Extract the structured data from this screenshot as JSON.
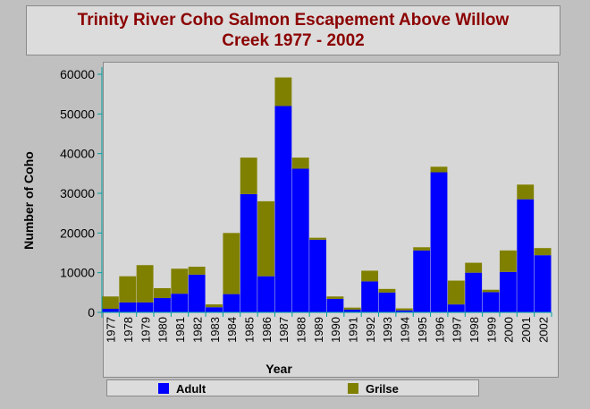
{
  "title_line1": "Trinity River Coho Salmon Escapement Above Willow",
  "title_line2": "Creek 1977 - 2002",
  "chart_data": {
    "type": "bar",
    "stacked": true,
    "categories": [
      "1977",
      "1978",
      "1979",
      "1980",
      "1981",
      "1982",
      "1983",
      "1984",
      "1985",
      "1986",
      "1987",
      "1988",
      "1989",
      "1990",
      "1991",
      "1992",
      "1993",
      "1994",
      "1995",
      "1996",
      "1997",
      "1998",
      "1999",
      "2000",
      "2001",
      "2002"
    ],
    "series": [
      {
        "name": "Adult",
        "color": "#0000ff",
        "values": [
          900,
          2500,
          2500,
          3600,
          4700,
          9500,
          1300,
          4600,
          29800,
          9100,
          52000,
          36200,
          18300,
          3400,
          700,
          7800,
          5000,
          500,
          15600,
          35300,
          2000,
          10000,
          5100,
          10200,
          28500,
          14400
        ]
      },
      {
        "name": "Grilse",
        "color": "#808000",
        "values": [
          3100,
          6600,
          9400,
          2500,
          6300,
          2000,
          700,
          15400,
          9200,
          18900,
          7200,
          2800,
          500,
          600,
          500,
          2700,
          900,
          500,
          800,
          1400,
          6000,
          2500,
          600,
          5400,
          3700,
          1800
        ]
      }
    ],
    "xlabel": "Year",
    "ylabel": "Number of Coho",
    "ylim": [
      0,
      60000
    ],
    "yticks": [
      "0",
      "10000",
      "20000",
      "30000",
      "40000",
      "50000",
      "60000"
    ],
    "legend_position": "bottom",
    "grid": false
  }
}
